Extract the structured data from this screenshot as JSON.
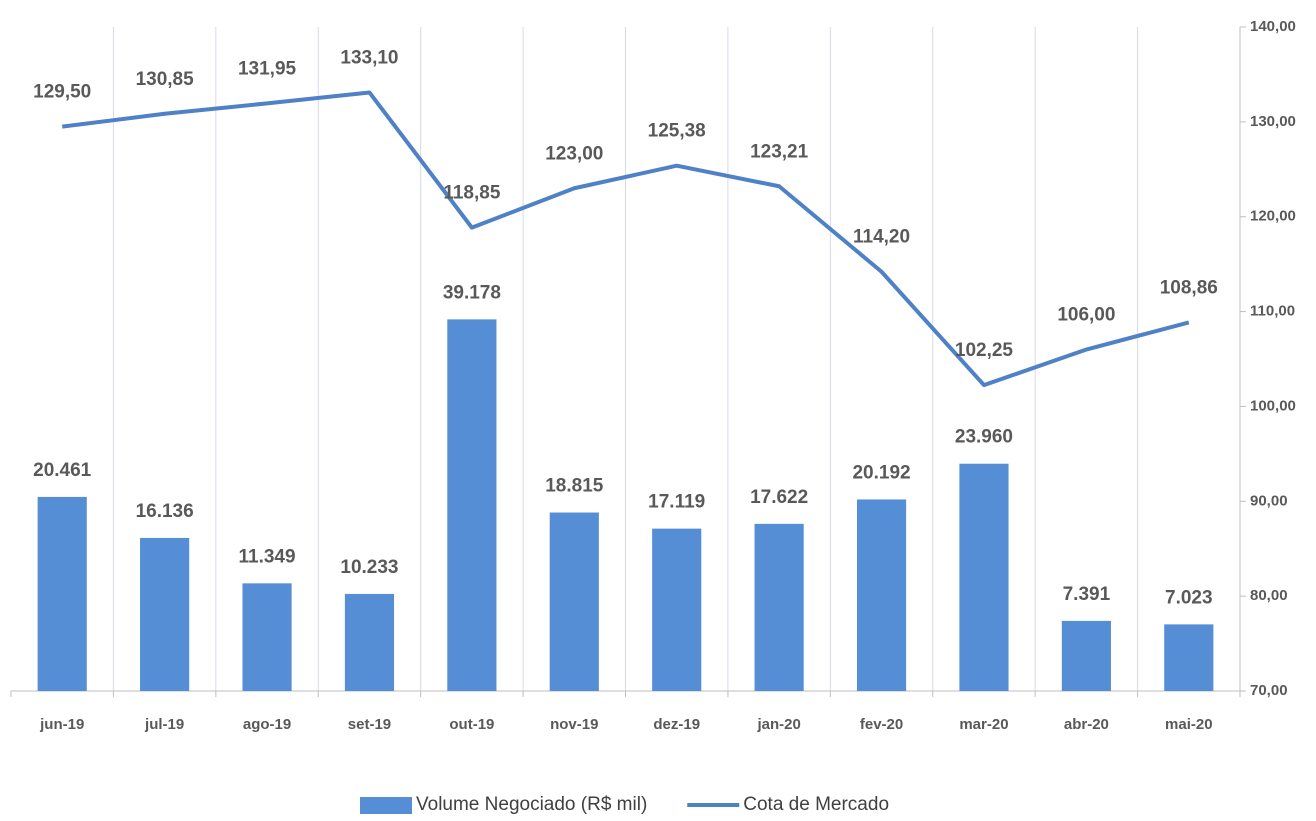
{
  "chart_data": {
    "type": "bar_line",
    "categories": [
      "jun-19",
      "jul-19",
      "ago-19",
      "set-19",
      "out-19",
      "nov-19",
      "dez-19",
      "jan-20",
      "fev-20",
      "mar-20",
      "abr-20",
      "mai-20"
    ],
    "series": [
      {
        "name": "Volume Negociado (R$ mil)",
        "type": "bar",
        "color": "#558ed5",
        "values": [
          20461,
          16136,
          11349,
          10233,
          39178,
          18815,
          17119,
          17622,
          20192,
          23960,
          7391,
          7023
        ],
        "value_labels": [
          "20.461",
          "16.136",
          "11.349",
          "10.233",
          "39.178",
          "18.815",
          "17.119",
          "17.622",
          "20.192",
          "23.960",
          "7.391",
          "7.023"
        ]
      },
      {
        "name": "Cota de Mercado",
        "type": "line",
        "axis": "y2",
        "color": "#4f81c7",
        "values": [
          129.5,
          130.85,
          131.95,
          133.1,
          118.85,
          123.0,
          125.38,
          123.21,
          114.2,
          102.25,
          106.0,
          108.86
        ],
        "value_labels": [
          "129,50",
          "130,85",
          "131,95",
          "133,10",
          "118,85",
          "123,00",
          "125,38",
          "123,21",
          "114,20",
          "102,25",
          "106,00",
          "108,86"
        ]
      }
    ],
    "ylim": [
      0,
      70000
    ],
    "y2lim": [
      70,
      140
    ],
    "y2ticks": [
      {
        "value": 70,
        "label": "70,00"
      },
      {
        "value": 80,
        "label": "80,00"
      },
      {
        "value": 90,
        "label": "90,00"
      },
      {
        "value": 100,
        "label": "100,00"
      },
      {
        "value": 110,
        "label": "110,00"
      },
      {
        "value": 120,
        "label": "120,00"
      },
      {
        "value": 130,
        "label": "130,00"
      },
      {
        "value": 140,
        "label": "140,00"
      }
    ],
    "legend": "bottom"
  }
}
